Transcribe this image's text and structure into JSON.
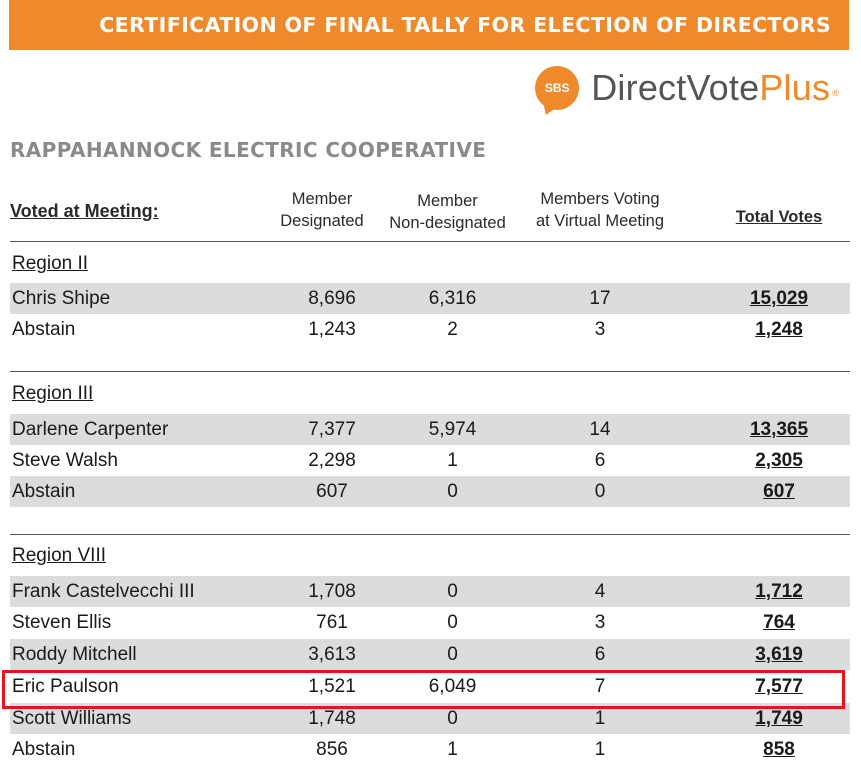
{
  "banner": {
    "title": "CERTIFICATION OF FINAL TALLY FOR ELECTION OF DIRECTORS"
  },
  "logo": {
    "badge": "SBS",
    "brand_a": "DirectVote",
    "brand_b": "Plus",
    "reg": "®"
  },
  "organization": "RAPPAHANNOCK ELECTRIC COOPERATIVE",
  "colors": {
    "accent": "#ee8a2c",
    "highlight": "#e8141c",
    "row_shade": "#dcdcdc"
  },
  "table": {
    "header": {
      "voted": "Voted at Meeting:",
      "col1_l1": "Member",
      "col1_l2": "Designated",
      "col2_l1": "Member",
      "col2_l2": "Non-designated",
      "col3_l1": "Members Voting",
      "col3_l2": "at Virtual Meeting",
      "total": "Total Votes"
    },
    "regions": [
      {
        "name": "Region II",
        "rows": [
          {
            "name": "Chris Shipe",
            "designated": "8,696",
            "non_designated": "6,316",
            "virtual": "17",
            "total": "15,029"
          },
          {
            "name": "Abstain",
            "designated": "1,243",
            "non_designated": "2",
            "virtual": "3",
            "total": "1,248"
          }
        ]
      },
      {
        "name": "Region III",
        "rows": [
          {
            "name": "Darlene Carpenter",
            "designated": "7,377",
            "non_designated": "5,974",
            "virtual": "14",
            "total": "13,365"
          },
          {
            "name": "Steve Walsh",
            "designated": "2,298",
            "non_designated": "1",
            "virtual": "6",
            "total": "2,305"
          },
          {
            "name": "Abstain",
            "designated": "607",
            "non_designated": "0",
            "virtual": "0",
            "total": "607"
          }
        ]
      },
      {
        "name": "Region VIII",
        "rows": [
          {
            "name": "Frank Castelvecchi III",
            "designated": "1,708",
            "non_designated": "0",
            "virtual": "4",
            "total": "1,712"
          },
          {
            "name": "Steven Ellis",
            "designated": "761",
            "non_designated": "0",
            "virtual": "3",
            "total": "764"
          },
          {
            "name": "Roddy Mitchell",
            "designated": "3,613",
            "non_designated": "0",
            "virtual": "6",
            "total": "3,619"
          },
          {
            "name": "Eric Paulson",
            "designated": "1,521",
            "non_designated": "6,049",
            "virtual": "7",
            "total": "7,577"
          },
          {
            "name": "Scott Williams",
            "designated": "1,748",
            "non_designated": "0",
            "virtual": "1",
            "total": "1,749"
          },
          {
            "name": "Abstain",
            "designated": "856",
            "non_designated": "1",
            "virtual": "1",
            "total": "858"
          }
        ]
      }
    ]
  }
}
